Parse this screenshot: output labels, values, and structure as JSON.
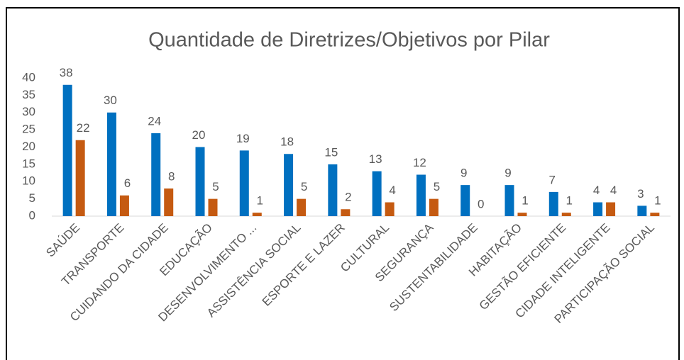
{
  "chart_data": {
    "type": "bar",
    "title": "Quantidade de Diretrizes/Objetivos por Pilar",
    "categories": [
      "SAÚDE",
      "TRANSPORTE",
      "CUIDANDO DA CIDADE",
      "EDUCAÇÃO",
      "DESENVOLVIMENTO ...",
      "ASSISTÊNCIA SOCIAL",
      "ESPORTE E LAZER",
      "CULTURAL",
      "SEGURANÇA",
      "SUSTENTABILIDADE",
      "HABITAÇÃO",
      "GESTÃO EFICIENTE",
      "CIDADE INTELIGENTE",
      "PARTICIPAÇÃO SOCIAL"
    ],
    "series": [
      {
        "color": "#0070c0",
        "values": [
          38,
          30,
          24,
          20,
          19,
          18,
          15,
          13,
          12,
          9,
          9,
          7,
          4,
          3
        ]
      },
      {
        "color": "#c55a11",
        "values": [
          22,
          6,
          8,
          5,
          1,
          5,
          2,
          4,
          5,
          0,
          1,
          1,
          4,
          1
        ]
      }
    ],
    "ylim": [
      0,
      40
    ],
    "yticks": [
      0,
      5,
      10,
      15,
      20,
      25,
      30,
      35,
      40
    ],
    "grid": false
  }
}
